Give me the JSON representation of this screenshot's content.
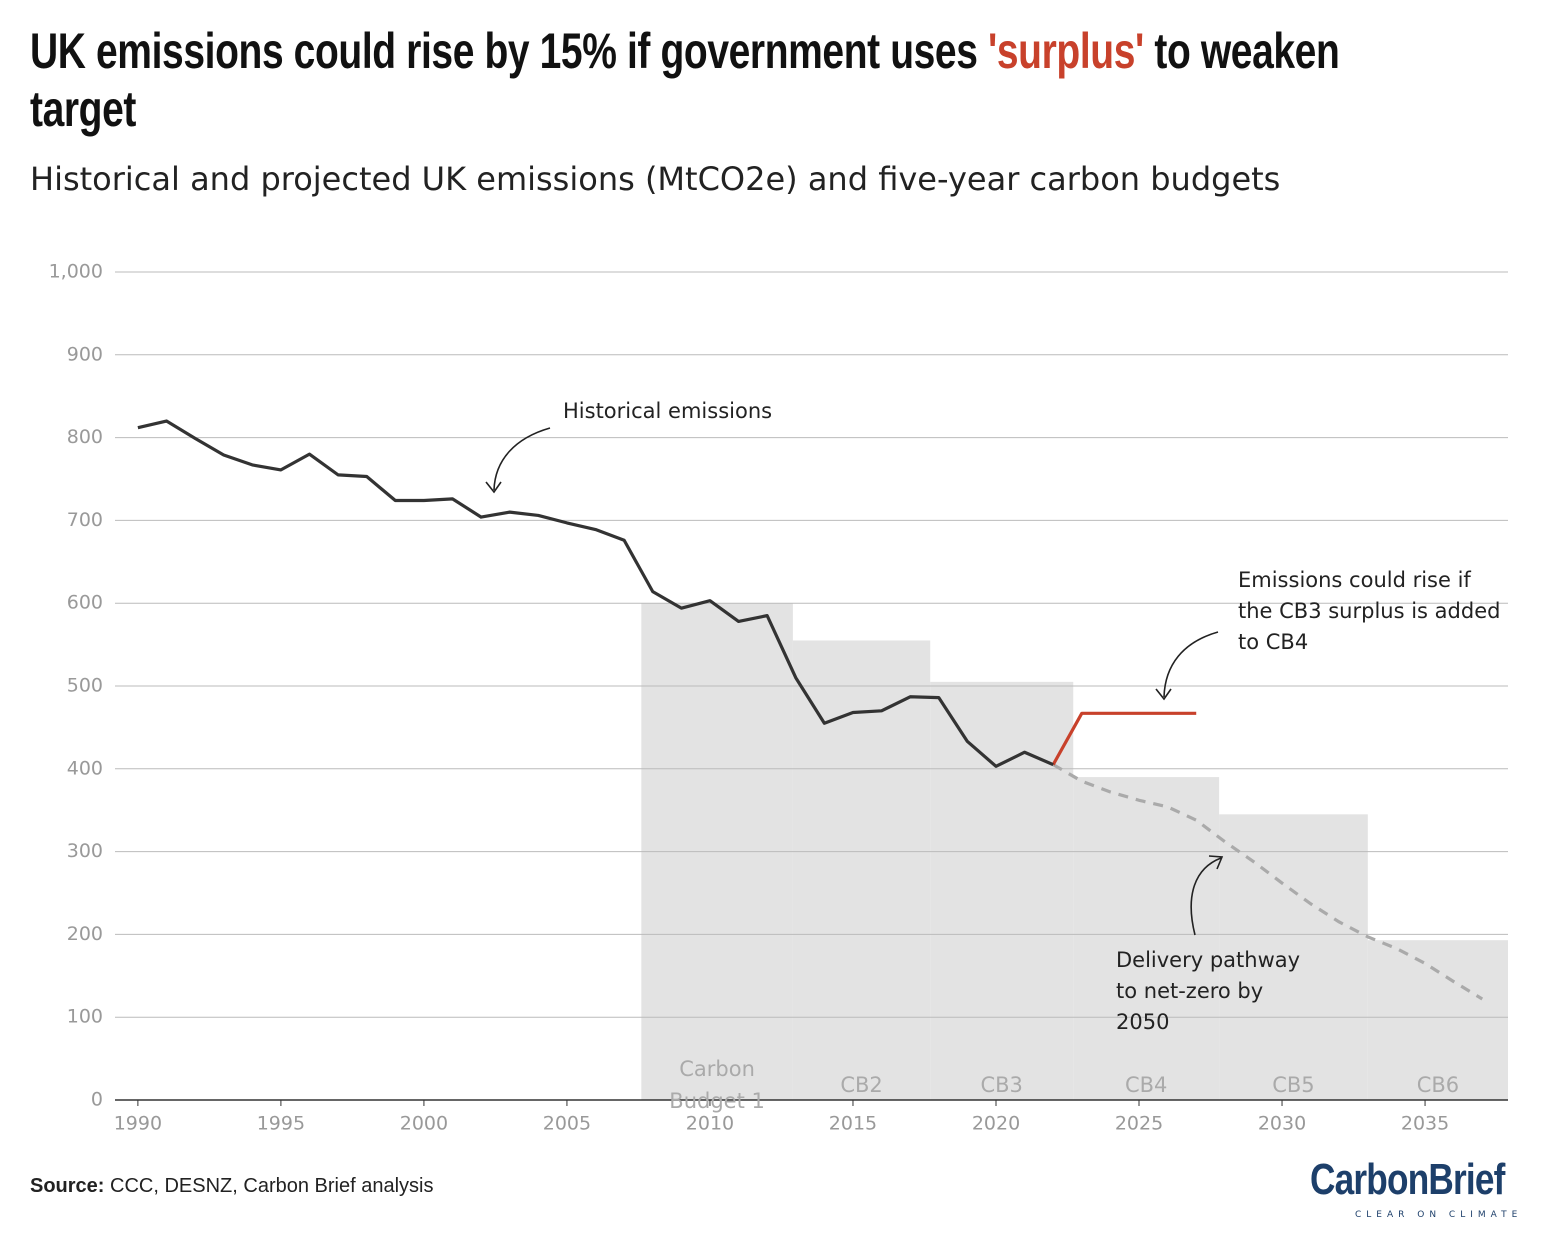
{
  "chart_data": {
    "type": "line",
    "title_before": "UK emissions could rise by 15% if government uses",
    "title_highlight": "'surplus'",
    "title_after": "to weaken target",
    "subtitle": "Historical and projected UK emissions (MtCO2e) and five-year carbon budgets",
    "xlim": [
      1989.2,
      2037.9
    ],
    "xticks": [
      1990,
      1995,
      2000,
      2005,
      2010,
      2015,
      2020,
      2025,
      2030,
      2035
    ],
    "ylim": [
      0,
      1000
    ],
    "yticks": [
      0,
      100,
      200,
      300,
      400,
      500,
      600,
      700,
      800,
      900,
      {
        "value": 1000,
        "label": "1,000"
      }
    ],
    "grid": true,
    "series": [
      {
        "color": "#333333",
        "x": [
          1990,
          1991,
          1992,
          1993,
          1994,
          1995,
          1996,
          1997,
          1998,
          1999,
          2000,
          2001,
          2002,
          2003,
          2004,
          2005,
          2006,
          2007,
          2008,
          2009,
          2010,
          2011,
          2012,
          2013,
          2014,
          2015,
          2016,
          2017,
          2018,
          2019,
          2020,
          2021,
          2022
        ],
        "values": [
          812,
          820,
          799,
          779,
          767,
          761,
          780,
          755,
          753,
          724,
          724,
          726,
          704,
          710,
          706,
          697,
          689,
          676,
          614,
          594,
          603,
          578,
          585,
          510,
          455,
          468,
          470,
          487,
          486,
          433,
          403,
          420,
          405
        ]
      },
      {
        "color": "#c8412b",
        "x": [
          2022,
          2023,
          2027
        ],
        "values": [
          405,
          467,
          467
        ]
      },
      {
        "color": "#aaaaaa",
        "dashed": true,
        "x": [
          2022,
          2023,
          2024,
          2025,
          2026,
          2027,
          2028,
          2029,
          2030,
          2031,
          2032,
          2033,
          2034,
          2035,
          2036,
          2037
        ],
        "values": [
          405,
          385,
          372,
          362,
          354,
          338,
          312,
          288,
          262,
          237,
          215,
          197,
          183,
          165,
          143,
          122
        ]
      }
    ],
    "budgets": {
      "color": "#e3e3e3",
      "bins": [
        2007.6,
        2012.9,
        2017.7,
        2022.7,
        2027.8,
        2033,
        2037.9
      ],
      "values": [
        600,
        555,
        505,
        390,
        345,
        193
      ],
      "labels": [
        "Carbon Budget 1",
        "CB2",
        "CB3",
        "CB4",
        "CB5",
        "CB6"
      ]
    },
    "annotations": [
      "Historical emissions",
      "Emissions could rise if the CB3 surplus is added to CB4",
      "Delivery pathway to net-zero by 2050"
    ],
    "source_label": "Source:",
    "source": "CCC, DESNZ, Carbon Brief analysis",
    "logo": "CarbonBrief",
    "logo_tagline": "CLEAR ON CLIMATE"
  }
}
